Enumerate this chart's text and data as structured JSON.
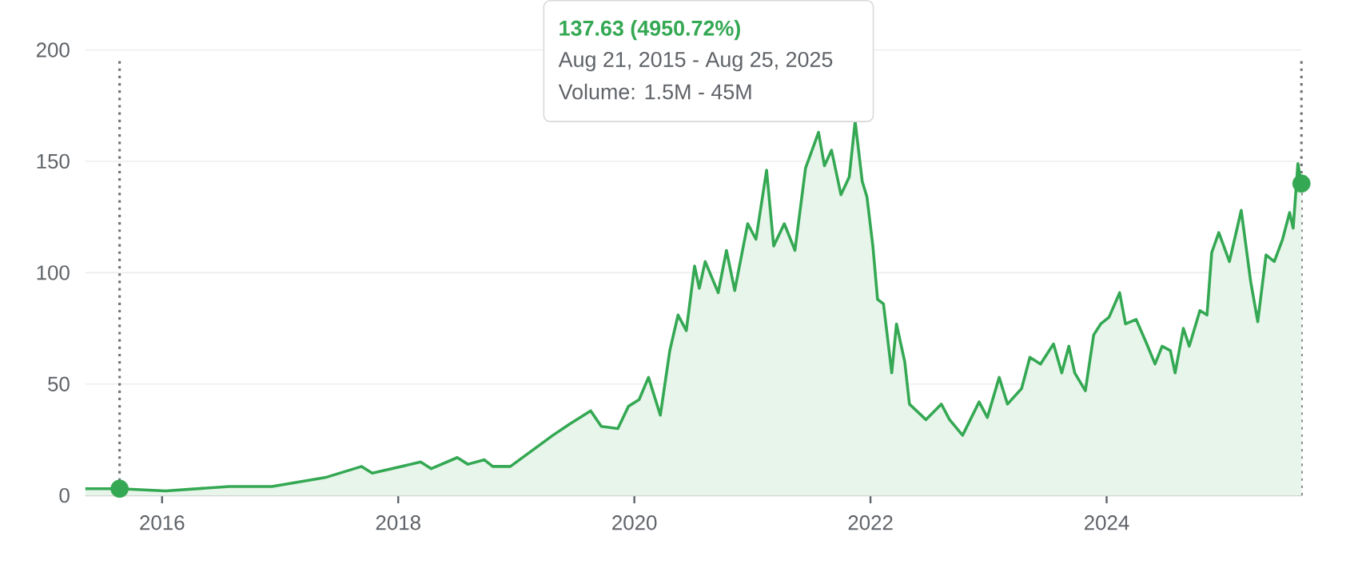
{
  "chart_data": {
    "type": "area",
    "annotations": [
      "**137.63 (4950.72%)**",
      "Aug 21, 2015 - Aug 25, 2025",
      "Volume: 1.5M - 45M"
    ],
    "series": [
      {
        "color": "#34a853",
        "x": [
          2015.35,
          2015.64,
          2016.03,
          2016.57,
          2016.93,
          2017.38,
          2017.69,
          2017.78,
          2018.19,
          2018.28,
          2018.5,
          2018.59,
          2018.73,
          2018.8,
          2018.95,
          2019.31,
          2019.45,
          2019.63,
          2019.72,
          2019.86,
          2019.95,
          2020.04,
          2020.12,
          2020.22,
          2020.3,
          2020.37,
          2020.44,
          2020.51,
          2020.55,
          2020.6,
          2020.71,
          2020.78,
          2020.85,
          2020.96,
          2021.03,
          2021.12,
          2021.18,
          2021.27,
          2021.36,
          2021.45,
          2021.56,
          2021.61,
          2021.67,
          2021.75,
          2021.82,
          2021.87,
          2021.93,
          2021.97,
          2022.02,
          2022.06,
          2022.11,
          2022.18,
          2022.22,
          2022.29,
          2022.33,
          2022.47,
          2022.6,
          2022.67,
          2022.78,
          2022.92,
          2022.99,
          2023.09,
          2023.16,
          2023.28,
          2023.35,
          2023.44,
          2023.55,
          2023.62,
          2023.68,
          2023.73,
          2023.82,
          2023.89,
          2023.95,
          2024.02,
          2024.11,
          2024.16,
          2024.25,
          2024.34,
          2024.41,
          2024.47,
          2024.54,
          2024.58,
          2024.65,
          2024.7,
          2024.79,
          2024.85,
          2024.89,
          2024.95,
          2025.04,
          2025.14,
          2025.22,
          2025.28,
          2025.35,
          2025.42,
          2025.49,
          2025.55,
          2025.58,
          2025.62,
          2025.65
        ],
        "values": [
          3,
          3,
          2,
          4,
          4,
          8,
          13,
          10,
          15,
          12,
          17,
          14,
          16,
          13,
          13,
          27,
          32,
          38,
          31,
          30,
          40,
          43,
          53,
          36,
          65,
          81,
          74,
          103,
          93,
          105,
          91,
          110,
          92,
          122,
          115,
          146,
          112,
          122,
          110,
          147,
          163,
          148,
          155,
          135,
          143,
          168,
          141,
          134,
          112,
          88,
          86,
          55,
          77,
          60,
          41,
          34,
          41,
          34,
          27,
          42,
          35,
          53,
          41,
          48,
          62,
          59,
          68,
          55,
          67,
          55,
          47,
          72,
          77,
          80,
          91,
          77,
          79,
          68,
          59,
          67,
          65,
          55,
          75,
          67,
          83,
          81,
          109,
          118,
          105,
          128,
          96,
          78,
          108,
          105,
          115,
          127,
          120,
          149,
          140
        ]
      },
      {
        "type": "scatter",
        "color": "#34a853",
        "marker": "circle",
        "x": [
          2015.64,
          2025.65
        ],
        "values": [
          3,
          140
        ]
      }
    ],
    "xlim": [
      2015.35,
      2025.65
    ],
    "xticks": [
      2016,
      2018,
      2020,
      2022,
      2024
    ],
    "ylim": [
      0,
      200
    ],
    "yticks": [
      0,
      50,
      100,
      150,
      200
    ],
    "grid": "y",
    "ref_lines": [
      {
        "axis": "x",
        "value": 2015.64,
        "color": "#757575",
        "line_style": "dotted"
      },
      {
        "axis": "x",
        "value": 2025.65,
        "color": "#757575",
        "line_style": "dotted"
      }
    ]
  }
}
